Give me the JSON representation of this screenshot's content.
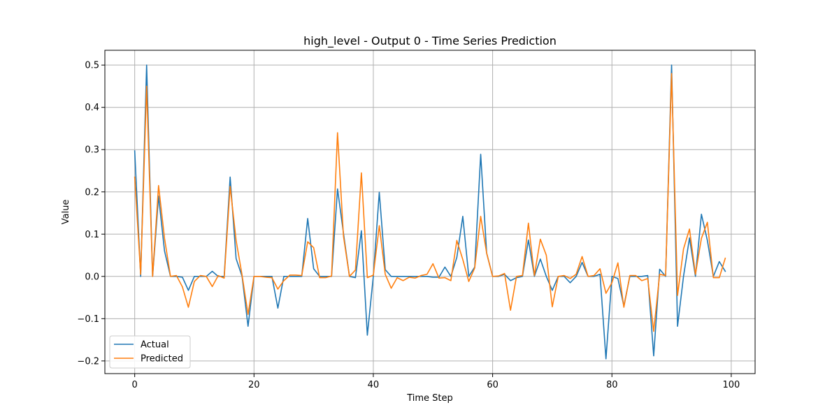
{
  "chart_data": {
    "type": "line",
    "title": "high_level - Output 0 - Time Series Prediction",
    "xlabel": "Time Step",
    "ylabel": "Value",
    "xlim": [
      -5,
      104
    ],
    "ylim": [
      -0.23,
      0.535
    ],
    "xticks": [
      0,
      20,
      40,
      60,
      80,
      100
    ],
    "xtick_labels": [
      "0",
      "20",
      "40",
      "60",
      "80",
      "100"
    ],
    "yticks": [
      -0.2,
      -0.1,
      0.0,
      0.1,
      0.2,
      0.3,
      0.4,
      0.5
    ],
    "ytick_labels": [
      "−0.2",
      "−0.1",
      "0.0",
      "0.1",
      "0.2",
      "0.3",
      "0.4",
      "0.5"
    ],
    "grid": true,
    "legend_position": "lower-left",
    "x": [
      0,
      1,
      2,
      3,
      4,
      5,
      6,
      7,
      8,
      9,
      10,
      11,
      12,
      13,
      14,
      15,
      16,
      17,
      18,
      19,
      20,
      21,
      22,
      23,
      24,
      25,
      26,
      27,
      28,
      29,
      30,
      31,
      32,
      33,
      34,
      35,
      36,
      37,
      38,
      39,
      40,
      41,
      42,
      43,
      44,
      45,
      46,
      47,
      48,
      49,
      50,
      51,
      52,
      53,
      54,
      55,
      56,
      57,
      58,
      59,
      60,
      61,
      62,
      63,
      64,
      65,
      66,
      67,
      68,
      69,
      70,
      71,
      72,
      73,
      74,
      75,
      76,
      77,
      78,
      79,
      80,
      81,
      82,
      83,
      84,
      85,
      86,
      87,
      88,
      89,
      90,
      91,
      92,
      93,
      94,
      95,
      96,
      97,
      98,
      99
    ],
    "series": [
      {
        "name": "Actual",
        "color": "#1f77b4",
        "values": [
          0.297,
          0.0,
          0.5,
          0.0,
          0.19,
          0.06,
          0.0,
          0.0,
          -0.002,
          -0.033,
          0.0,
          0.0,
          0.0,
          0.012,
          0.0,
          0.0,
          0.235,
          0.042,
          0.0,
          -0.118,
          0.0,
          0.0,
          0.0,
          0.0,
          -0.075,
          0.0,
          0.0,
          0.0,
          0.0,
          0.137,
          0.018,
          0.0,
          0.0,
          0.0,
          0.207,
          0.102,
          0.0,
          -0.003,
          0.108,
          -0.139,
          0.0,
          0.199,
          0.016,
          0.0,
          0.0,
          0.0,
          0.0,
          0.0,
          0.0,
          0.0,
          -0.002,
          -0.002,
          0.022,
          0.0,
          0.045,
          0.142,
          0.0,
          0.022,
          0.289,
          0.055,
          0.0,
          0.0,
          0.005,
          -0.01,
          -0.003,
          0.0,
          0.086,
          0.0,
          0.041,
          0.0,
          -0.033,
          0.0,
          0.0,
          -0.015,
          0.0,
          0.033,
          0.0,
          0.0,
          0.005,
          -0.195,
          0.0,
          -0.005,
          -0.07,
          0.0,
          0.0,
          0.0,
          0.002,
          -0.188,
          0.017,
          0.0,
          0.5,
          -0.118,
          0.0,
          0.091,
          0.0,
          0.147,
          0.085,
          0.0,
          0.035,
          0.012
        ]
      },
      {
        "name": "Predicted",
        "color": "#ff7f0e",
        "values": [
          0.235,
          0.005,
          0.45,
          0.0,
          0.215,
          0.09,
          0.0,
          0.002,
          -0.025,
          -0.073,
          -0.012,
          0.002,
          0.0,
          -0.024,
          0.002,
          -0.004,
          0.213,
          0.085,
          0.003,
          -0.09,
          0.0,
          0.0,
          -0.002,
          -0.003,
          -0.03,
          -0.01,
          0.003,
          0.003,
          0.002,
          0.082,
          0.068,
          -0.003,
          -0.003,
          0.001,
          0.34,
          0.095,
          0.0,
          0.015,
          0.245,
          -0.003,
          0.003,
          0.12,
          0.005,
          -0.028,
          -0.003,
          -0.01,
          -0.002,
          -0.004,
          0.002,
          0.005,
          0.03,
          -0.004,
          -0.003,
          -0.01,
          0.085,
          0.04,
          -0.012,
          0.02,
          0.142,
          0.055,
          0.0,
          0.001,
          0.007,
          -0.08,
          0.0,
          0.002,
          0.126,
          0.002,
          0.088,
          0.05,
          -0.072,
          0.0,
          0.002,
          -0.005,
          0.005,
          0.047,
          0.0,
          0.002,
          0.018,
          -0.04,
          -0.015,
          0.032,
          -0.073,
          0.002,
          0.002,
          -0.01,
          -0.005,
          -0.13,
          0.005,
          0.002,
          0.48,
          -0.045,
          0.065,
          0.112,
          0.005,
          0.09,
          0.128,
          -0.003,
          -0.003,
          0.043
        ]
      }
    ]
  }
}
